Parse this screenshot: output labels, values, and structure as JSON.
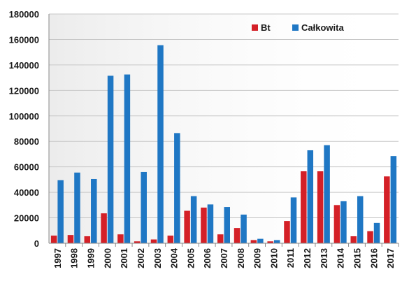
{
  "chart_data": {
    "type": "bar",
    "categories": [
      "1997",
      "1998",
      "1999",
      "2000",
      "2001",
      "2002",
      "2003",
      "2004",
      "2005",
      "2006",
      "2007",
      "2008",
      "2009",
      "2010",
      "2011",
      "2012",
      "2013",
      "2014",
      "2015",
      "2016",
      "2017"
    ],
    "series": [
      {
        "name": "Bt",
        "color": "#d42027",
        "values": [
          6000,
          6500,
          5500,
          23500,
          7000,
          1500,
          3000,
          6000,
          25500,
          28000,
          7000,
          12000,
          2500,
          1500,
          17500,
          56500,
          56500,
          30000,
          5500,
          9500,
          52500
        ]
      },
      {
        "name": "Całkowita",
        "color": "#1f77c4",
        "values": [
          49500,
          55500,
          50500,
          131500,
          132500,
          56000,
          155500,
          86500,
          37000,
          30500,
          28500,
          22500,
          3500,
          2500,
          36000,
          73000,
          77000,
          33000,
          37000,
          16000,
          68500
        ]
      }
    ],
    "title": "",
    "xlabel": "",
    "ylabel": "",
    "ylim": [
      0,
      180000
    ],
    "yticks": [
      "0",
      "20000",
      "40000",
      "60000",
      "80000",
      "100000",
      "120000",
      "140000",
      "160000",
      "180000"
    ],
    "grid": true,
    "legend_position": "top-right"
  }
}
